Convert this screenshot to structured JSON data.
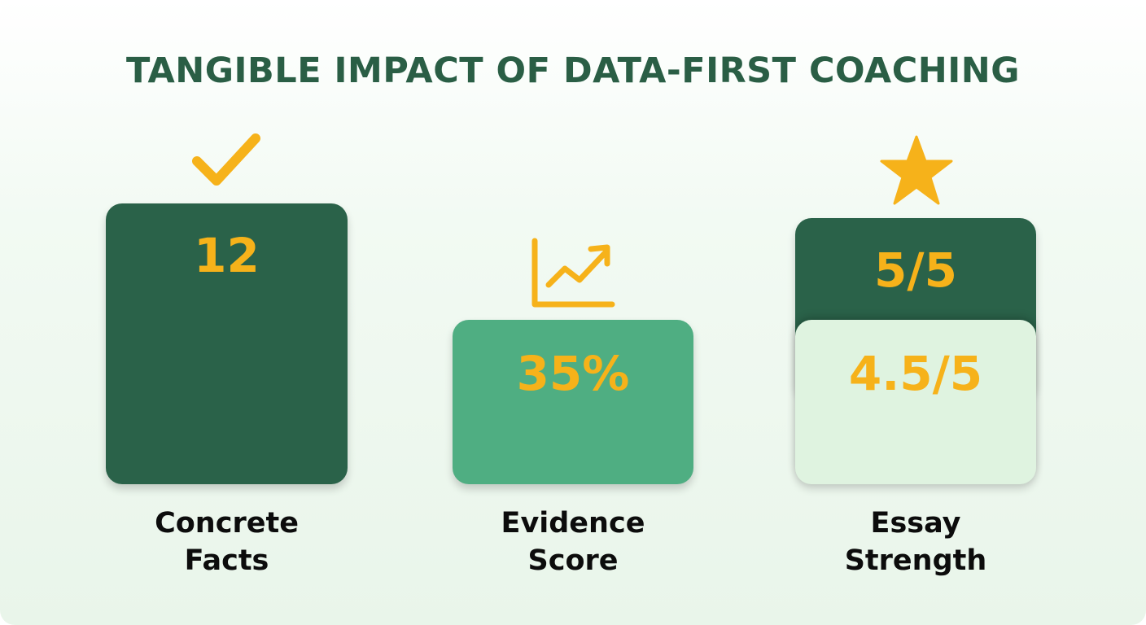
{
  "title": "TANGIBLE IMPACT OF DATA-FIRST COACHING",
  "colors": {
    "dark_green": "#2a6249",
    "medium_green": "#4fae82",
    "light_green": "#dff3e0",
    "accent_yellow": "#f6b21a",
    "title_green": "#2a5e45"
  },
  "icons": [
    "checkmark-icon",
    "trend-chart-icon",
    "star-icon"
  ],
  "metrics": [
    {
      "value_text": "12",
      "label_line1": "Concrete",
      "label_line2": "Facts"
    },
    {
      "value_text": "35%",
      "label_line1": "Evidence",
      "label_line2": "Score"
    },
    {
      "value_text": "5/5",
      "value_text_2": "4.5/5",
      "label_line1": "Essay",
      "label_line2": "Strength"
    }
  ],
  "chart_data": {
    "type": "bar",
    "title": "TANGIBLE IMPACT OF DATA-FIRST COACHING",
    "categories": [
      "Concrete Facts",
      "Evidence Score",
      "Essay Strength"
    ],
    "values": [
      12,
      35,
      5
    ],
    "value_labels": [
      "12",
      "35%",
      "5/5"
    ],
    "secondary": {
      "category": "Essay Strength",
      "value": 4.5,
      "label": "4.5/5"
    }
  }
}
